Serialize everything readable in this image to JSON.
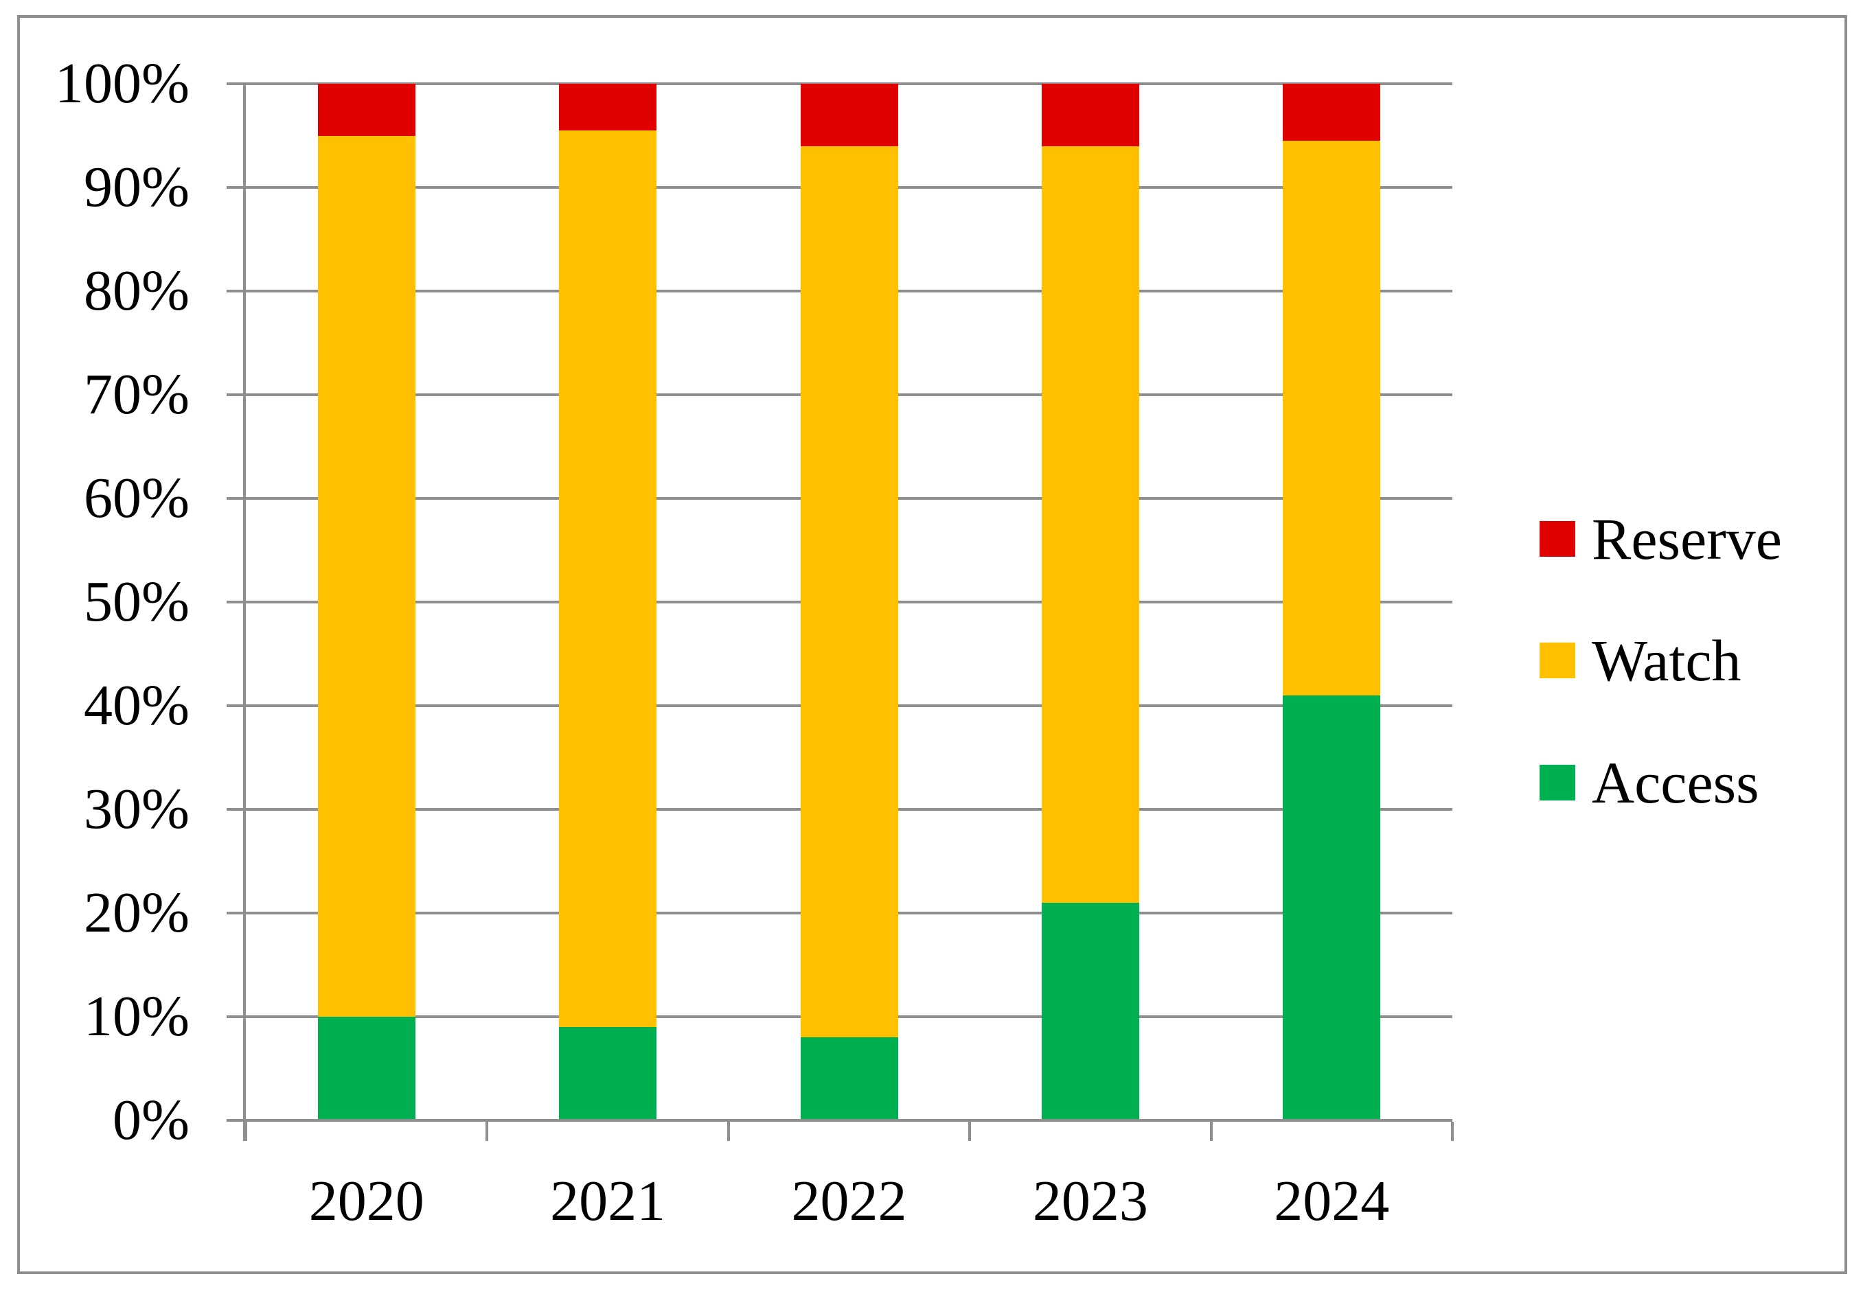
{
  "figure": {
    "background": "#FFFFFF",
    "border_color": "#8F8F8F"
  },
  "chart_data": {
    "type": "bar",
    "variant": "stacked-100-percent-column",
    "title": "",
    "xlabel": "",
    "ylabel": "",
    "categories": [
      "2020",
      "2021",
      "2022",
      "2023",
      "2024"
    ],
    "series": [
      {
        "name": "Access",
        "color": "#00B050",
        "values": [
          10,
          9,
          8,
          21,
          41
        ]
      },
      {
        "name": "Watch",
        "color": "#FFC000",
        "values": [
          85,
          86.5,
          86,
          73,
          53.5
        ]
      },
      {
        "name": "Reserve",
        "color": "#E00000",
        "values": [
          5,
          4.5,
          6,
          6,
          5.5
        ]
      }
    ],
    "stack_order_bottom_to_top": [
      "Access",
      "Watch",
      "Reserve"
    ],
    "ylim": [
      0,
      100
    ],
    "yticks": [
      {
        "value": 0,
        "label": "0%"
      },
      {
        "value": 10,
        "label": "10%"
      },
      {
        "value": 20,
        "label": "20%"
      },
      {
        "value": 30,
        "label": "30%"
      },
      {
        "value": 40,
        "label": "40%"
      },
      {
        "value": 50,
        "label": "50%"
      },
      {
        "value": 60,
        "label": "60%"
      },
      {
        "value": 70,
        "label": "70%"
      },
      {
        "value": 80,
        "label": "80%"
      },
      {
        "value": 90,
        "label": "90%"
      },
      {
        "value": 100,
        "label": "100%"
      }
    ],
    "grid": true,
    "gridline_color": "#8F8F8F",
    "legend": {
      "position": "right",
      "items": [
        {
          "label": "Reserve",
          "color": "#E00000"
        },
        {
          "label": "Watch",
          "color": "#FFC000"
        },
        {
          "label": "Access",
          "color": "#00B050"
        }
      ]
    }
  }
}
